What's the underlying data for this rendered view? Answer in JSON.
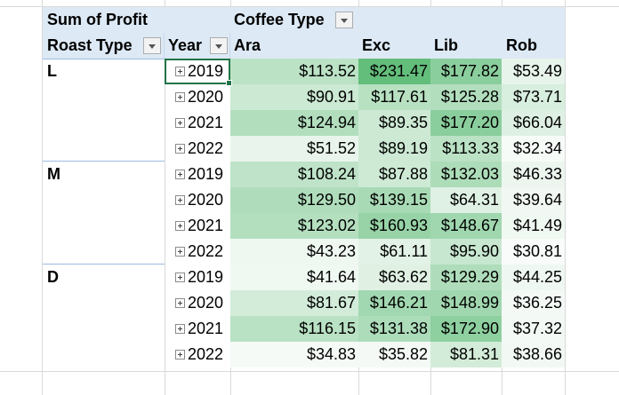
{
  "pivot": {
    "value_field": "Sum of Profit",
    "column_field": "Coffee Type",
    "row_field_1": "Roast Type",
    "row_field_2": "Year",
    "columns": [
      "Ara",
      "Exc",
      "Lib",
      "Rob"
    ],
    "groups": [
      {
        "roast": "L",
        "rows": [
          {
            "year": "2019",
            "values": [
              "$113.52",
              "$231.47",
              "$177.82",
              "$53.49"
            ]
          },
          {
            "year": "2020",
            "values": [
              "$90.91",
              "$117.61",
              "$125.28",
              "$73.71"
            ]
          },
          {
            "year": "2021",
            "values": [
              "$124.94",
              "$89.35",
              "$177.20",
              "$66.04"
            ]
          },
          {
            "year": "2022",
            "values": [
              "$51.52",
              "$89.19",
              "$113.33",
              "$32.34"
            ]
          }
        ]
      },
      {
        "roast": "M",
        "rows": [
          {
            "year": "2019",
            "values": [
              "$108.24",
              "$87.88",
              "$132.03",
              "$46.33"
            ]
          },
          {
            "year": "2020",
            "values": [
              "$129.50",
              "$139.15",
              "$64.31",
              "$39.64"
            ]
          },
          {
            "year": "2021",
            "values": [
              "$123.02",
              "$160.93",
              "$148.67",
              "$41.49"
            ]
          },
          {
            "year": "2022",
            "values": [
              "$43.23",
              "$61.11",
              "$95.90",
              "$30.81"
            ]
          }
        ]
      },
      {
        "roast": "D",
        "rows": [
          {
            "year": "2019",
            "values": [
              "$41.64",
              "$63.62",
              "$129.29",
              "$44.25"
            ]
          },
          {
            "year": "2020",
            "values": [
              "$81.67",
              "$146.21",
              "$148.99",
              "$36.25"
            ]
          },
          {
            "year": "2021",
            "values": [
              "$116.15",
              "$131.38",
              "$172.90",
              "$37.32"
            ]
          },
          {
            "year": "2022",
            "values": [
              "$34.83",
              "$35.82",
              "$81.31",
              "$38.66"
            ]
          }
        ]
      }
    ]
  },
  "colors": {
    "header_band": "#dde9f5",
    "scale_low": "#f8fbf9",
    "scale_high": "#63be7b",
    "active_cell_border": "#217346",
    "gridline": "#d9d9d9"
  },
  "icons": {
    "filter": "chevron-down-icon",
    "expand": "plus-box-icon"
  }
}
